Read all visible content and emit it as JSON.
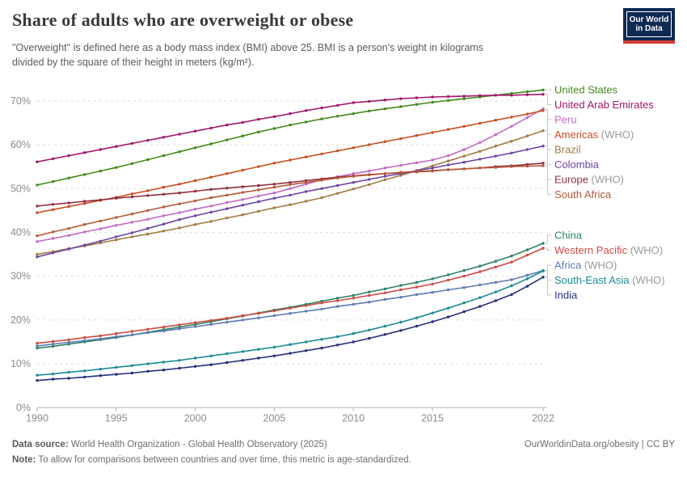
{
  "header": {
    "title": "Share of adults who are overweight or obese",
    "subtitle_line1": "\"Overweight\" is defined here as a body mass index (BMI) above 25. BMI is a person's weight in kilograms",
    "subtitle_line2": "divided by the square of their height in meters (kg/m²).",
    "logo_line1": "Our World",
    "logo_line2": "in Data"
  },
  "footer": {
    "source_label": "Data source:",
    "source_text": " World Health Organization - Global Health Observatory (2025)",
    "rights": "OurWorldinData.org/obesity | CC BY",
    "note_label": "Note:",
    "note_text": " To allow for comparisons between countries and over time, this metric is age-standardized."
  },
  "chart_data": {
    "type": "line",
    "title": "Share of adults who are overweight or obese",
    "xlabel": "",
    "ylabel": "",
    "ylim": [
      0,
      75
    ],
    "grid": "horizontal-dashed",
    "legend_position": "right-line-labels",
    "y_ticks": [
      0,
      10,
      20,
      30,
      40,
      50,
      60,
      70
    ],
    "y_tick_labels": [
      "0%",
      "10%",
      "20%",
      "30%",
      "40%",
      "50%",
      "60%",
      "70%"
    ],
    "x_ticks": [
      1990,
      1995,
      2000,
      2005,
      2010,
      2015,
      2022
    ],
    "x_tick_labels": [
      "1990",
      "1995",
      "2000",
      "2005",
      "2010",
      "2015",
      "2022"
    ],
    "x": [
      1990,
      1991,
      1992,
      1993,
      1994,
      1995,
      1996,
      1997,
      1998,
      1999,
      2000,
      2001,
      2002,
      2003,
      2004,
      2005,
      2006,
      2007,
      2008,
      2009,
      2010,
      2011,
      2012,
      2013,
      2014,
      2015,
      2016,
      2017,
      2018,
      2019,
      2020,
      2021,
      2022
    ],
    "series": [
      {
        "name": "United States",
        "suffix": "",
        "slug": "united-states",
        "color": "#428a1b",
        "values": [
          50.8,
          51.6,
          52.4,
          53.2,
          54.0,
          54.8,
          55.7,
          56.6,
          57.5,
          58.4,
          59.3,
          60.2,
          61.1,
          62.0,
          62.9,
          63.7,
          64.5,
          65.2,
          65.9,
          66.5,
          67.1,
          67.7,
          68.2,
          68.7,
          69.2,
          69.7,
          70.1,
          70.5,
          70.9,
          71.3,
          71.7,
          72.1,
          72.5
        ]
      },
      {
        "name": "United Arab Emirates",
        "suffix": "",
        "slug": "united-arab-emirates",
        "color": "#a2166b",
        "values": [
          56.1,
          56.8,
          57.5,
          58.2,
          58.9,
          59.6,
          60.3,
          61.0,
          61.7,
          62.4,
          63.1,
          63.8,
          64.5,
          65.1,
          65.8,
          66.4,
          67.1,
          67.8,
          68.4,
          69.0,
          69.6,
          69.9,
          70.2,
          70.5,
          70.7,
          70.9,
          71.0,
          71.1,
          71.2,
          71.3,
          71.3,
          71.4,
          71.5
        ]
      },
      {
        "name": "Peru",
        "suffix": "",
        "slug": "peru",
        "color": "#c06ac2",
        "values": [
          37.9,
          38.6,
          39.3,
          40.1,
          40.8,
          41.6,
          42.3,
          43.0,
          43.8,
          44.5,
          45.3,
          46.0,
          46.8,
          47.5,
          48.3,
          49.0,
          50.0,
          51.0,
          52.0,
          52.7,
          53.4,
          54.0,
          54.7,
          55.3,
          55.9,
          56.5,
          57.5,
          58.9,
          60.5,
          62.3,
          64.2,
          66.2,
          68.2
        ]
      },
      {
        "name": "Americas",
        "suffix": " (WHO)",
        "slug": "americas-who",
        "color": "#c84e20",
        "values": [
          44.5,
          45.2,
          45.9,
          46.6,
          47.3,
          48.0,
          48.8,
          49.5,
          50.3,
          51.0,
          51.8,
          52.6,
          53.4,
          54.2,
          55.0,
          55.8,
          56.5,
          57.2,
          57.9,
          58.6,
          59.3,
          60.0,
          60.7,
          61.4,
          62.1,
          62.8,
          63.5,
          64.2,
          64.9,
          65.6,
          66.3,
          67.0,
          67.8
        ]
      },
      {
        "name": "Brazil",
        "suffix": "",
        "slug": "brazil",
        "color": "#a17c43",
        "values": [
          35.0,
          35.6,
          36.3,
          36.9,
          37.6,
          38.3,
          39.0,
          39.6,
          40.3,
          41.0,
          41.8,
          42.5,
          43.3,
          44.0,
          44.8,
          45.6,
          46.3,
          47.1,
          47.9,
          48.9,
          49.9,
          50.9,
          52.0,
          53.0,
          54.1,
          55.2,
          56.3,
          57.4,
          58.5,
          59.7,
          60.8,
          62.0,
          63.2
        ]
      },
      {
        "name": "Colombia",
        "suffix": "",
        "slug": "colombia",
        "color": "#6d44a5",
        "values": [
          34.4,
          35.3,
          36.2,
          37.1,
          38.0,
          39.0,
          39.9,
          40.9,
          41.9,
          42.9,
          43.8,
          44.6,
          45.4,
          46.2,
          47.0,
          47.8,
          48.5,
          49.3,
          50.0,
          50.7,
          51.4,
          52.1,
          52.8,
          53.4,
          54.1,
          54.7,
          55.4,
          56.0,
          56.7,
          57.4,
          58.1,
          58.9,
          59.7
        ]
      },
      {
        "name": "Europe",
        "suffix": " (WHO)",
        "slug": "europe-who",
        "color": "#90303d",
        "values": [
          46.0,
          46.4,
          46.7,
          47.1,
          47.4,
          47.8,
          48.1,
          48.4,
          48.7,
          49.0,
          49.4,
          49.8,
          50.1,
          50.4,
          50.7,
          51.0,
          51.4,
          51.8,
          52.2,
          52.6,
          52.9,
          53.2,
          53.4,
          53.6,
          53.8,
          54.0,
          54.3,
          54.5,
          54.7,
          55.0,
          55.2,
          55.5,
          55.8
        ]
      },
      {
        "name": "South Africa",
        "suffix": "",
        "slug": "south-africa",
        "color": "#b65a3b",
        "values": [
          39.2,
          40.1,
          40.9,
          41.8,
          42.6,
          43.4,
          44.2,
          45.0,
          45.8,
          46.5,
          47.2,
          47.9,
          48.5,
          49.1,
          49.7,
          50.3,
          50.9,
          51.4,
          51.9,
          52.4,
          52.8,
          53.1,
          53.4,
          53.7,
          53.9,
          54.1,
          54.3,
          54.5,
          54.7,
          54.8,
          55.0,
          55.1,
          55.2
        ]
      },
      {
        "name": "China",
        "suffix": "",
        "slug": "china",
        "color": "#2c8465",
        "values": [
          13.6,
          14.0,
          14.5,
          15.0,
          15.5,
          16.0,
          16.6,
          17.2,
          17.8,
          18.4,
          19.0,
          19.6,
          20.3,
          20.9,
          21.6,
          22.3,
          22.9,
          23.6,
          24.3,
          25.0,
          25.6,
          26.4,
          27.1,
          27.9,
          28.6,
          29.4,
          30.3,
          31.3,
          32.3,
          33.4,
          34.6,
          36.0,
          37.5
        ]
      },
      {
        "name": "Western Pacific",
        "suffix": " (WHO)",
        "slug": "western-pacific-who",
        "color": "#ce4b42",
        "values": [
          14.7,
          15.1,
          15.5,
          16.0,
          16.4,
          16.9,
          17.4,
          17.9,
          18.4,
          18.9,
          19.4,
          19.9,
          20.4,
          21.0,
          21.5,
          22.1,
          22.7,
          23.3,
          23.9,
          24.4,
          25.0,
          25.6,
          26.2,
          26.9,
          27.5,
          28.2,
          29.1,
          30.0,
          31.0,
          32.1,
          33.2,
          34.8,
          36.4
        ]
      },
      {
        "name": "Africa",
        "suffix": " (WHO)",
        "slug": "africa-who",
        "color": "#5f7cb0",
        "values": [
          14.1,
          14.5,
          14.9,
          15.3,
          15.7,
          16.2,
          16.6,
          17.1,
          17.5,
          18.0,
          18.5,
          19.0,
          19.5,
          20.0,
          20.5,
          21.0,
          21.5,
          22.0,
          22.5,
          23.1,
          23.6,
          24.1,
          24.7,
          25.2,
          25.8,
          26.3,
          26.9,
          27.4,
          28.0,
          28.6,
          29.2,
          30.2,
          31.3
        ]
      },
      {
        "name": "South-East Asia",
        "suffix": " (WHO)",
        "slug": "south-east-asia-who",
        "color": "#1b8b96",
        "values": [
          7.4,
          7.7,
          8.1,
          8.4,
          8.8,
          9.2,
          9.6,
          10.0,
          10.4,
          10.8,
          11.3,
          11.8,
          12.3,
          12.8,
          13.3,
          13.8,
          14.4,
          15.0,
          15.6,
          16.2,
          16.9,
          17.7,
          18.6,
          19.5,
          20.5,
          21.6,
          22.7,
          23.9,
          25.1,
          26.4,
          27.8,
          29.4,
          31.2
        ]
      },
      {
        "name": "India",
        "suffix": "",
        "slug": "india",
        "color": "#272f7d",
        "values": [
          6.2,
          6.5,
          6.7,
          7.0,
          7.3,
          7.6,
          7.9,
          8.3,
          8.6,
          9.0,
          9.4,
          9.8,
          10.3,
          10.8,
          11.3,
          11.8,
          12.4,
          13.0,
          13.6,
          14.3,
          15.0,
          15.8,
          16.7,
          17.6,
          18.6,
          19.6,
          20.7,
          21.9,
          23.1,
          24.4,
          25.8,
          27.7,
          29.8
        ]
      }
    ]
  }
}
